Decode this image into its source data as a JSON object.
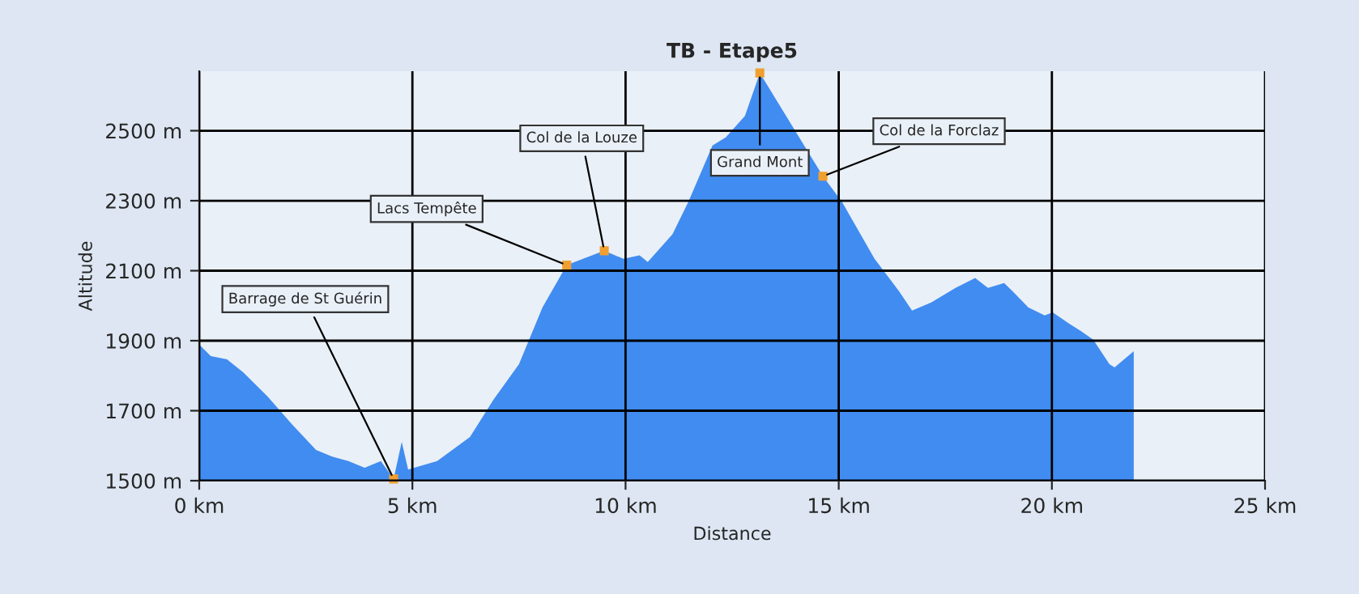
{
  "chart_data": {
    "type": "area",
    "title": "TB - Etape5",
    "xlabel": "Distance",
    "ylabel": "Altitude",
    "x": [
      0,
      0.27,
      0.65,
      1.03,
      1.6,
      2.17,
      2.74,
      3.12,
      3.5,
      3.88,
      4.26,
      4.56,
      4.75,
      4.9,
      5.58,
      6.35,
      6.9,
      7.5,
      8.05,
      8.62,
      9.5,
      9.95,
      10.33,
      10.52,
      11.1,
      11.47,
      12.04,
      12.35,
      12.8,
      13.15,
      14.63,
      15.08,
      15.84,
      16.41,
      16.72,
      17.17,
      17.74,
      18.2,
      18.5,
      18.88,
      19.07,
      19.45,
      19.83,
      20.02,
      20.4,
      20.7,
      20.97,
      21.35,
      21.47,
      21.92
    ],
    "series": [
      {
        "color": "#418cf0",
        "values": [
          1889,
          1856,
          1847,
          1810,
          1741,
          1662,
          1588,
          1569,
          1556,
          1537,
          1556,
          1505,
          1611,
          1532,
          1556,
          1625,
          1731,
          1833,
          1995,
          2116,
          2157,
          2134,
          2144,
          2125,
          2204,
          2296,
          2458,
          2481,
          2542,
          2665,
          2370,
          2296,
          2134,
          2042,
          1986,
          2009,
          2051,
          2079,
          2051,
          2065,
          2042,
          1995,
          1972,
          1981,
          1949,
          1926,
          1903,
          1833,
          1824,
          1870
        ]
      }
    ],
    "xlim": [
      0,
      25
    ],
    "xticks": [
      {
        "value": 0,
        "label": "0 km"
      },
      {
        "value": 5,
        "label": "5 km"
      },
      {
        "value": 10,
        "label": "10 km"
      },
      {
        "value": 15,
        "label": "15 km"
      },
      {
        "value": 20,
        "label": "20 km"
      },
      {
        "value": 25,
        "label": "25 km"
      }
    ],
    "ylim": [
      1500,
      2670
    ],
    "yticks": [
      {
        "value": 1500,
        "label": "1500 m"
      },
      {
        "value": 1700,
        "label": "1700 m"
      },
      {
        "value": 1900,
        "label": "1900 m"
      },
      {
        "value": 2100,
        "label": "2100 m"
      },
      {
        "value": 2300,
        "label": "2300 m"
      },
      {
        "value": 2500,
        "label": "2500 m"
      }
    ],
    "grid": true,
    "annotations": [
      {
        "text": "Barrage de St Guérin",
        "x": 4.56,
        "y": 1505
      },
      {
        "text": "Lacs Tempête",
        "x": 8.62,
        "y": 2116
      },
      {
        "text": "Col de la Louze",
        "x": 9.5,
        "y": 2157
      },
      {
        "text": "Grand Mont",
        "x": 13.15,
        "y": 2665
      },
      {
        "text": "Col de la Forclaz",
        "x": 14.63,
        "y": 2370
      }
    ]
  }
}
